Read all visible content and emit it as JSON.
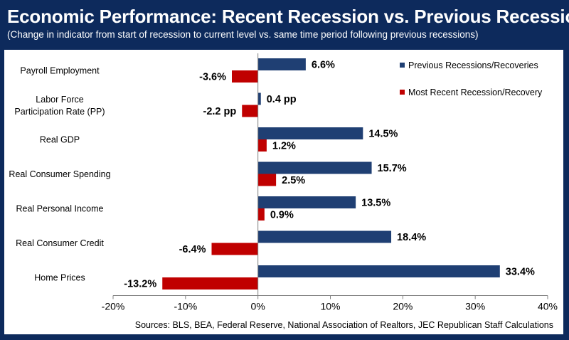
{
  "header": {
    "title": "Economic Performance: Recent Recession vs. Previous Recessions",
    "subtitle": "(Change in indicator from start of recession to current level vs. same time period following previous recessions)"
  },
  "source": "Sources: BLS, BEA, Federal Reserve, National Association of Realtors, JEC Republican Staff Calculations",
  "colors": {
    "background": "#0d2a5c",
    "previous": "#1f3f73",
    "recent": "#c00000"
  },
  "chart_data": {
    "type": "bar",
    "orientation": "horizontal",
    "categories": [
      [
        "Payroll Employment"
      ],
      [
        "Labor Force",
        "Participation Rate (PP)"
      ],
      [
        "Real GDP"
      ],
      [
        "Real Consumer Spending"
      ],
      [
        "Real Personal Income"
      ],
      [
        "Real Consumer Credit"
      ],
      [
        "Home Prices"
      ]
    ],
    "series": [
      {
        "name": "Previous Recessions/Recoveries",
        "values": [
          6.6,
          0.4,
          14.5,
          15.7,
          13.5,
          18.4,
          33.4
        ],
        "labels": [
          "6.6%",
          "0.4 pp",
          "14.5%",
          "15.7%",
          "13.5%",
          "18.4%",
          "33.4%"
        ]
      },
      {
        "name": "Most Recent Recession/Recovery",
        "values": [
          -3.6,
          -2.2,
          1.2,
          2.5,
          0.9,
          -6.4,
          -13.2
        ],
        "labels": [
          "-3.6%",
          "-2.2  pp",
          "1.2%",
          "2.5%",
          "0.9%",
          "-6.4%",
          "-13.2%"
        ]
      }
    ],
    "xlim": [
      -20,
      40
    ],
    "xticks": [
      "-20%",
      "-10%",
      "0%",
      "10%",
      "20%",
      "30%",
      "40%"
    ],
    "legend_position": "top-right",
    "grid": false
  }
}
